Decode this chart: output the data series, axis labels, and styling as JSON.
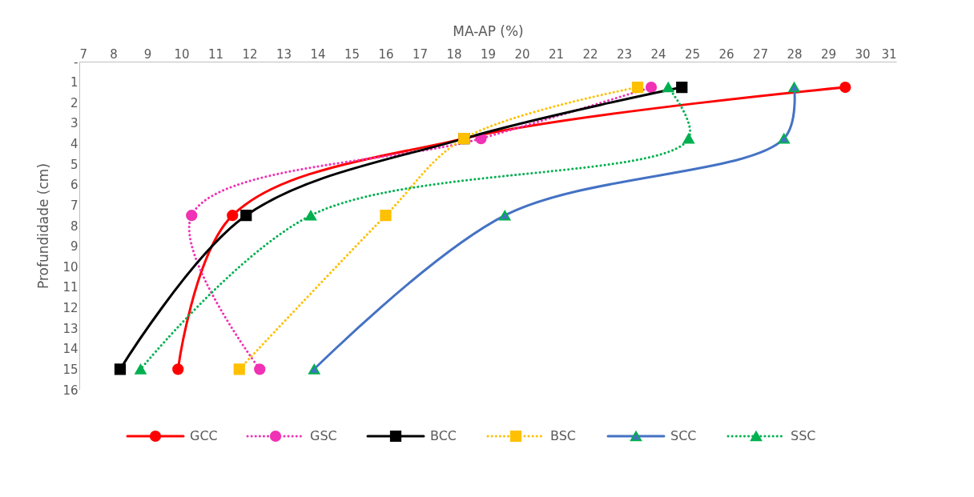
{
  "chart_data": {
    "type": "line",
    "xlabel": "MA-AP (%)",
    "ylabel": "Profundidade (cm)",
    "xlim": [
      7,
      31
    ],
    "xticks": [
      7,
      8,
      9,
      10,
      11,
      12,
      13,
      14,
      15,
      16,
      17,
      18,
      19,
      20,
      21,
      22,
      23,
      24,
      25,
      26,
      27,
      28,
      29,
      30,
      31
    ],
    "ylim": [
      16,
      0
    ],
    "yticks": [
      {
        "value": 0,
        "label": "-"
      },
      1,
      2,
      3,
      4,
      5,
      6,
      7,
      8,
      9,
      10,
      11,
      12,
      13,
      14,
      15,
      16
    ],
    "grid": false,
    "legend": "bottom",
    "series": [
      {
        "name": "GCC",
        "color": "#ff0000",
        "marker": "circle",
        "line_style": "solid",
        "x": [
          29.5,
          18.3,
          11.5,
          9.9
        ],
        "values": [
          1.25,
          3.75,
          7.5,
          15
        ]
      },
      {
        "name": "GSC",
        "color": "#f032b4",
        "marker": "circle",
        "line_style": "dotted",
        "x": [
          23.8,
          18.8,
          10.3,
          12.3
        ],
        "values": [
          1.25,
          3.75,
          7.5,
          15
        ]
      },
      {
        "name": "BCC",
        "color": "#000000",
        "marker": "square",
        "line_style": "solid",
        "x": [
          24.7,
          18.3,
          11.9,
          8.2
        ],
        "values": [
          1.25,
          3.75,
          7.5,
          15
        ]
      },
      {
        "name": "BSC",
        "color": "#ffc000",
        "marker": "square",
        "line_style": "dotted",
        "x": [
          23.4,
          18.3,
          16.0,
          11.7
        ],
        "values": [
          1.25,
          3.75,
          7.5,
          15
        ]
      },
      {
        "name": "SCC",
        "color": "#4472c4",
        "marker": "triangle",
        "line_style": "solid",
        "x": [
          28.0,
          27.7,
          19.5,
          13.9
        ],
        "values": [
          1.25,
          3.75,
          7.5,
          15
        ]
      },
      {
        "name": "SSC",
        "color": "#00b050",
        "marker": "triangle",
        "line_style": "dotted",
        "x": [
          24.3,
          24.9,
          13.8,
          8.8
        ],
        "values": [
          1.25,
          3.75,
          7.5,
          15
        ]
      }
    ]
  }
}
